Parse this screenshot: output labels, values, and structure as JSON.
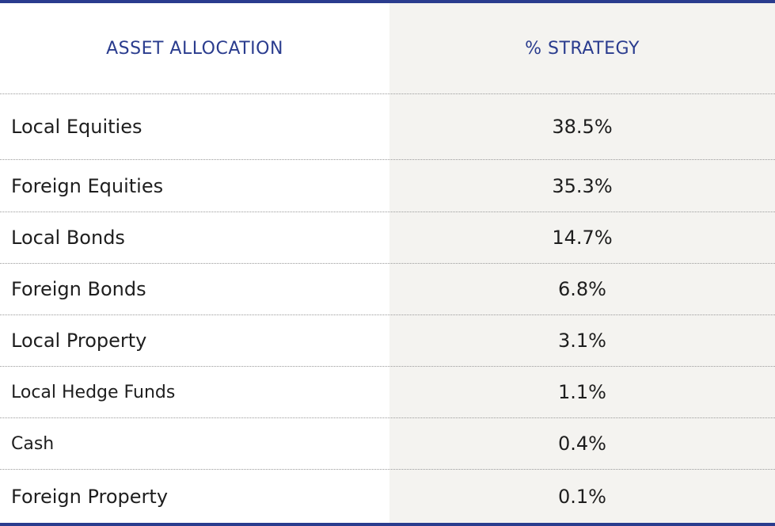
{
  "table": {
    "headers": {
      "asset": "ASSET ALLOCATION",
      "strategy": "% STRATEGY"
    },
    "rows": [
      {
        "asset": "Local Equities",
        "strategy": "38.5%"
      },
      {
        "asset": "Foreign Equities",
        "strategy": "35.3%"
      },
      {
        "asset": "Local Bonds",
        "strategy": "14.7%"
      },
      {
        "asset": "Foreign Bonds",
        "strategy": "6.8%"
      },
      {
        "asset": "Local Property",
        "strategy": "3.1%"
      },
      {
        "asset": "Local Hedge Funds",
        "strategy": "1.1%"
      },
      {
        "asset": "Cash",
        "strategy": "0.4%"
      },
      {
        "asset": "Foreign Property",
        "strategy": "0.1%"
      }
    ]
  },
  "colors": {
    "accent": "#2a3c8e",
    "column_shade": "#f4f3f0",
    "text": "#1e1e1e"
  }
}
